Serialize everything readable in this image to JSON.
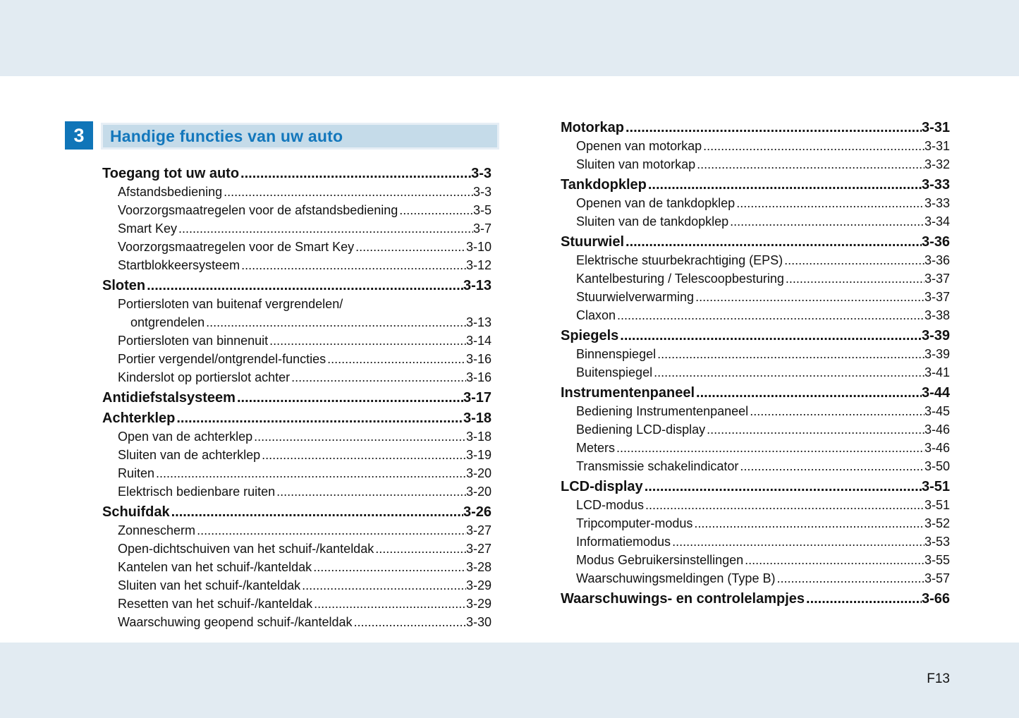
{
  "page": {
    "chapter_number": "3",
    "chapter_title": "Handige functies van uw auto",
    "footer_page_number": "F13"
  },
  "colors": {
    "band_blue": "#e2ebf2",
    "title_bar_blue": "#c5dbe9",
    "chapter_box_blue": "#1075b8",
    "title_text_blue": "#1377bc"
  },
  "toc": {
    "left": [
      {
        "label": "Toegang tot uw auto",
        "page": "3-3",
        "level": "h"
      },
      {
        "label": "Afstandsbediening",
        "page": "3-3",
        "level": "s"
      },
      {
        "label": "Voorzorgsmaatregelen voor de afstandsbediening",
        "page": "3-5",
        "level": "s"
      },
      {
        "label": "Smart Key",
        "page": "3-7",
        "level": "s"
      },
      {
        "label": "Voorzorgsmaatregelen voor de Smart Key",
        "page": "3-10",
        "level": "s"
      },
      {
        "label": "Startblokkeersysteem",
        "page": "3-12",
        "level": "s"
      },
      {
        "label": "Sloten",
        "page": "3-13",
        "level": "h"
      },
      {
        "label": "Portiersloten van buitenaf vergrendelen/",
        "label2": "ontgrendelen",
        "page": "3-13",
        "level": "s"
      },
      {
        "label": "Portiersloten van binnenuit",
        "page": "3-14",
        "level": "s"
      },
      {
        "label": "Portier vergendel/ontgrendel-functies",
        "page": "3-16",
        "level": "s"
      },
      {
        "label": "Kinderslot op portierslot achter",
        "page": "3-16",
        "level": "s"
      },
      {
        "label": "Antidiefstalsysteem",
        "page": "3-17",
        "level": "h"
      },
      {
        "label": "Achterklep",
        "page": "3-18",
        "level": "h"
      },
      {
        "label": "Open van de achterklep",
        "page": "3-18",
        "level": "s"
      },
      {
        "label": "Sluiten van de achterklep",
        "page": "3-19",
        "level": "s"
      },
      {
        "label": "Ruiten",
        "page": "3-20",
        "level": "s"
      },
      {
        "label": "Elektrisch bedienbare ruiten",
        "page": "3-20",
        "level": "s"
      },
      {
        "label": "Schuifdak",
        "page": "3-26",
        "level": "h"
      },
      {
        "label": "Zonnescherm",
        "page": "3-27",
        "level": "s"
      },
      {
        "label": "Open-dichtschuiven van het schuif-/kanteldak",
        "page": "3-27",
        "level": "s"
      },
      {
        "label": "Kantelen van het schuif-/kanteldak",
        "page": "3-28",
        "level": "s"
      },
      {
        "label": "Sluiten van het schuif-/kanteldak",
        "page": "3-29",
        "level": "s"
      },
      {
        "label": "Resetten van het schuif-/kanteldak",
        "page": "3-29",
        "level": "s"
      },
      {
        "label": "Waarschuwing geopend schuif-/kanteldak",
        "page": "3-30",
        "level": "s"
      }
    ],
    "right": [
      {
        "label": "Motorkap",
        "page": "3-31",
        "level": "h"
      },
      {
        "label": "Openen van motorkap",
        "page": "3-31",
        "level": "s"
      },
      {
        "label": "Sluiten van motorkap",
        "page": "3-32",
        "level": "s"
      },
      {
        "label": "Tankdopklep",
        "page": "3-33",
        "level": "h"
      },
      {
        "label": "Openen van de tankdopklep",
        "page": "3-33",
        "level": "s"
      },
      {
        "label": "Sluiten van de tankdopklep",
        "page": "3-34",
        "level": "s"
      },
      {
        "label": "Stuurwiel",
        "page": "3-36",
        "level": "h"
      },
      {
        "label": "Elektrische stuurbekrachtiging (EPS)",
        "page": "3-36",
        "level": "s"
      },
      {
        "label": "Kantelbesturing / Telescoopbesturing",
        "page": "3-37",
        "level": "s"
      },
      {
        "label": "Stuurwielverwarming",
        "page": "3-37",
        "level": "s"
      },
      {
        "label": "Claxon",
        "page": "3-38",
        "level": "s"
      },
      {
        "label": "Spiegels",
        "page": "3-39",
        "level": "h"
      },
      {
        "label": "Binnenspiegel",
        "page": "3-39",
        "level": "s"
      },
      {
        "label": "Buitenspiegel",
        "page": "3-41",
        "level": "s"
      },
      {
        "label": "Instrumentenpaneel",
        "page": "3-44",
        "level": "h"
      },
      {
        "label": "Bediening Instrumentenpaneel",
        "page": "3-45",
        "level": "s"
      },
      {
        "label": "Bediening LCD-display",
        "page": "3-46",
        "level": "s"
      },
      {
        "label": "Meters",
        "page": "3-46",
        "level": "s"
      },
      {
        "label": "Transmissie schakelindicator",
        "page": "3-50",
        "level": "s"
      },
      {
        "label": "LCD-display",
        "page": "3-51",
        "level": "h"
      },
      {
        "label": "LCD-modus",
        "page": "3-51",
        "level": "s"
      },
      {
        "label": "Tripcomputer-modus",
        "page": "3-52",
        "level": "s"
      },
      {
        "label": "Informatiemodus",
        "page": "3-53",
        "level": "s"
      },
      {
        "label": "Modus Gebruikersinstellingen",
        "page": "3-55",
        "level": "s"
      },
      {
        "label": "Waarschuwingsmeldingen (Type B)",
        "page": "3-57",
        "level": "s"
      },
      {
        "label": "Waarschuwings- en controlelampjes",
        "page": "3-66",
        "level": "h"
      }
    ]
  }
}
